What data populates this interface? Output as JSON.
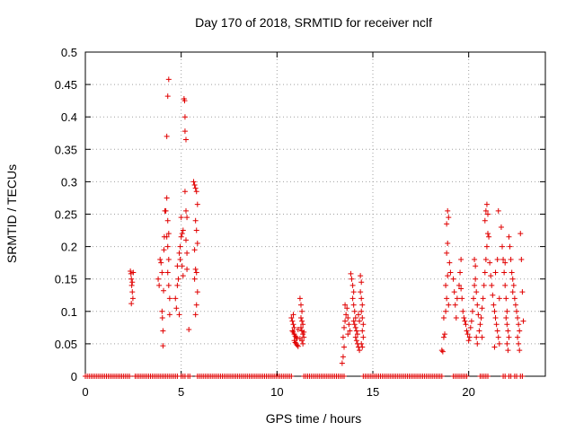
{
  "chart_data": {
    "type": "scatter",
    "title": "Day 170 of 2018, SRMTID for receiver nclf",
    "xlabel": "GPS time / hours",
    "ylabel": "SRMTID / TECUs",
    "xlim": [
      0,
      24
    ],
    "ylim": [
      0,
      0.5
    ],
    "xticks": [
      0,
      5,
      10,
      15,
      20
    ],
    "xtick_labels": [
      "0",
      "5",
      "10",
      "15",
      "20"
    ],
    "yticks": [
      0,
      0.05,
      0.1,
      0.15,
      0.2,
      0.25,
      0.3,
      0.35,
      0.4,
      0.45,
      0.5
    ],
    "ytick_labels": [
      "0",
      "0.05",
      "0.1",
      "0.15",
      "0.2",
      "0.25",
      "0.3",
      "0.35",
      "0.4",
      "0.45",
      "0.5"
    ],
    "grid": true,
    "legend": "none",
    "marker": "plus",
    "color": "#e00000",
    "series": [
      {
        "name": "SRMTID",
        "points": [
          [
            2.35,
            0.162
          ],
          [
            2.38,
            0.158
          ],
          [
            2.4,
            0.15
          ],
          [
            2.42,
            0.14
          ],
          [
            2.45,
            0.13
          ],
          [
            2.48,
            0.12
          ],
          [
            2.4,
            0.112
          ],
          [
            2.45,
            0.145
          ],
          [
            2.5,
            0.16
          ],
          [
            3.8,
            0.15
          ],
          [
            3.85,
            0.14
          ],
          [
            3.9,
            0.18
          ],
          [
            3.95,
            0.175
          ],
          [
            4.0,
            0.16
          ],
          [
            4.0,
            0.1
          ],
          [
            4.02,
            0.09
          ],
          [
            4.05,
            0.07
          ],
          [
            4.05,
            0.047
          ],
          [
            4.08,
            0.132
          ],
          [
            4.1,
            0.195
          ],
          [
            4.12,
            0.215
          ],
          [
            4.15,
            0.255
          ],
          [
            4.25,
            0.275
          ],
          [
            4.3,
            0.24
          ],
          [
            4.35,
            0.22
          ],
          [
            4.3,
            0.2
          ],
          [
            4.35,
            0.18
          ],
          [
            4.3,
            0.16
          ],
          [
            4.35,
            0.14
          ],
          [
            4.4,
            0.12
          ],
          [
            4.4,
            0.095
          ],
          [
            4.25,
            0.37
          ],
          [
            4.3,
            0.432
          ],
          [
            4.35,
            0.458
          ],
          [
            4.2,
            0.255
          ],
          [
            4.25,
            0.215
          ],
          [
            4.7,
            0.12
          ],
          [
            4.75,
            0.105
          ],
          [
            4.8,
            0.14
          ],
          [
            4.85,
            0.15
          ],
          [
            4.8,
            0.17
          ],
          [
            4.9,
            0.19
          ],
          [
            4.95,
            0.2
          ],
          [
            5.0,
            0.215
          ],
          [
            5.05,
            0.22
          ],
          [
            5.1,
            0.225
          ],
          [
            5.0,
            0.245
          ],
          [
            4.95,
            0.18
          ],
          [
            5.05,
            0.17
          ],
          [
            5.1,
            0.155
          ],
          [
            4.9,
            0.095
          ],
          [
            5.15,
            0.428
          ],
          [
            5.18,
            0.425
          ],
          [
            5.2,
            0.4
          ],
          [
            5.2,
            0.378
          ],
          [
            5.25,
            0.365
          ],
          [
            5.2,
            0.285
          ],
          [
            5.25,
            0.255
          ],
          [
            5.3,
            0.245
          ],
          [
            5.25,
            0.21
          ],
          [
            5.3,
            0.19
          ],
          [
            5.3,
            0.165
          ],
          [
            5.4,
            0.072
          ],
          [
            5.65,
            0.3
          ],
          [
            5.7,
            0.295
          ],
          [
            5.75,
            0.29
          ],
          [
            5.8,
            0.285
          ],
          [
            5.85,
            0.265
          ],
          [
            5.75,
            0.24
          ],
          [
            5.8,
            0.225
          ],
          [
            5.7,
            0.195
          ],
          [
            5.75,
            0.165
          ],
          [
            5.8,
            0.16
          ],
          [
            5.85,
            0.13
          ],
          [
            5.8,
            0.11
          ],
          [
            5.75,
            0.095
          ],
          [
            5.85,
            0.205
          ],
          [
            5.7,
            0.15
          ],
          [
            10.75,
            0.09
          ],
          [
            10.8,
            0.085
          ],
          [
            10.85,
            0.08
          ],
          [
            10.9,
            0.075
          ],
          [
            10.8,
            0.07
          ],
          [
            10.85,
            0.068
          ],
          [
            10.9,
            0.065
          ],
          [
            10.95,
            0.062
          ],
          [
            11.0,
            0.06
          ],
          [
            11.05,
            0.058
          ],
          [
            10.9,
            0.055
          ],
          [
            10.95,
            0.052
          ],
          [
            11.0,
            0.05
          ],
          [
            11.05,
            0.048
          ],
          [
            11.1,
            0.046
          ],
          [
            10.85,
            0.095
          ],
          [
            11.1,
            0.072
          ],
          [
            11.2,
            0.12
          ],
          [
            11.25,
            0.11
          ],
          [
            11.3,
            0.1
          ],
          [
            11.25,
            0.09
          ],
          [
            11.3,
            0.085
          ],
          [
            11.35,
            0.08
          ],
          [
            11.25,
            0.075
          ],
          [
            11.3,
            0.07
          ],
          [
            11.35,
            0.065
          ],
          [
            11.4,
            0.06
          ],
          [
            11.3,
            0.055
          ],
          [
            11.35,
            0.05
          ],
          [
            11.4,
            0.068
          ],
          [
            11.2,
            0.058
          ],
          [
            13.4,
            0.02
          ],
          [
            13.45,
            0.03
          ],
          [
            13.5,
            0.045
          ],
          [
            13.45,
            0.06
          ],
          [
            13.5,
            0.075
          ],
          [
            13.55,
            0.085
          ],
          [
            13.6,
            0.095
          ],
          [
            13.55,
            0.11
          ],
          [
            13.65,
            0.105
          ],
          [
            13.7,
            0.09
          ],
          [
            13.75,
            0.08
          ],
          [
            13.8,
            0.07
          ],
          [
            13.7,
            0.065
          ],
          [
            13.85,
            0.158
          ],
          [
            13.9,
            0.15
          ],
          [
            13.95,
            0.14
          ],
          [
            14.0,
            0.13
          ],
          [
            13.95,
            0.12
          ],
          [
            14.0,
            0.11
          ],
          [
            14.05,
            0.1
          ],
          [
            14.1,
            0.09
          ],
          [
            14.0,
            0.085
          ],
          [
            14.05,
            0.08
          ],
          [
            14.1,
            0.075
          ],
          [
            14.15,
            0.07
          ],
          [
            14.2,
            0.065
          ],
          [
            14.1,
            0.06
          ],
          [
            14.15,
            0.055
          ],
          [
            14.2,
            0.05
          ],
          [
            14.25,
            0.045
          ],
          [
            14.3,
            0.04
          ],
          [
            14.35,
            0.155
          ],
          [
            14.4,
            0.145
          ],
          [
            14.35,
            0.13
          ],
          [
            14.4,
            0.12
          ],
          [
            14.45,
            0.11
          ],
          [
            14.4,
            0.1
          ],
          [
            14.45,
            0.09
          ],
          [
            14.5,
            0.08
          ],
          [
            14.45,
            0.07
          ],
          [
            14.5,
            0.06
          ],
          [
            14.4,
            0.05
          ],
          [
            14.45,
            0.045
          ],
          [
            14.3,
            0.085
          ],
          [
            14.25,
            0.095
          ],
          [
            18.6,
            0.04
          ],
          [
            18.65,
            0.038
          ],
          [
            18.7,
            0.06
          ],
          [
            18.75,
            0.065
          ],
          [
            18.7,
            0.09
          ],
          [
            18.8,
            0.1
          ],
          [
            18.85,
            0.12
          ],
          [
            18.8,
            0.14
          ],
          [
            18.9,
            0.155
          ],
          [
            18.85,
            0.19
          ],
          [
            18.9,
            0.205
          ],
          [
            18.85,
            0.235
          ],
          [
            18.9,
            0.255
          ],
          [
            18.95,
            0.245
          ],
          [
            19.0,
            0.175
          ],
          [
            19.05,
            0.16
          ],
          [
            18.95,
            0.11
          ],
          [
            19.2,
            0.15
          ],
          [
            19.25,
            0.13
          ],
          [
            19.3,
            0.11
          ],
          [
            19.35,
            0.09
          ],
          [
            19.4,
            0.12
          ],
          [
            19.5,
            0.14
          ],
          [
            19.55,
            0.16
          ],
          [
            19.6,
            0.135
          ],
          [
            19.65,
            0.12
          ],
          [
            19.7,
            0.1
          ],
          [
            19.75,
            0.09
          ],
          [
            19.8,
            0.085
          ],
          [
            19.85,
            0.08
          ],
          [
            19.9,
            0.07
          ],
          [
            19.95,
            0.065
          ],
          [
            19.6,
            0.18
          ],
          [
            20.0,
            0.055
          ],
          [
            20.05,
            0.06
          ],
          [
            20.1,
            0.075
          ],
          [
            20.15,
            0.085
          ],
          [
            20.2,
            0.1
          ],
          [
            20.25,
            0.12
          ],
          [
            20.3,
            0.14
          ],
          [
            20.35,
            0.15
          ],
          [
            20.4,
            0.13
          ],
          [
            20.45,
            0.11
          ],
          [
            20.5,
            0.095
          ],
          [
            20.3,
            0.18
          ],
          [
            20.35,
            0.17
          ],
          [
            20.4,
            0.06
          ],
          [
            20.45,
            0.05
          ],
          [
            20.55,
            0.07
          ],
          [
            20.6,
            0.08
          ],
          [
            20.65,
            0.09
          ],
          [
            20.7,
            0.105
          ],
          [
            20.75,
            0.12
          ],
          [
            20.8,
            0.14
          ],
          [
            20.85,
            0.16
          ],
          [
            20.9,
            0.18
          ],
          [
            20.95,
            0.2
          ],
          [
            21.0,
            0.22
          ],
          [
            20.85,
            0.24
          ],
          [
            20.9,
            0.255
          ],
          [
            20.95,
            0.265
          ],
          [
            21.0,
            0.25
          ],
          [
            21.05,
            0.215
          ],
          [
            21.1,
            0.175
          ],
          [
            20.7,
            0.06
          ],
          [
            21.15,
            0.155
          ],
          [
            21.2,
            0.14
          ],
          [
            21.25,
            0.125
          ],
          [
            21.3,
            0.11
          ],
          [
            21.35,
            0.1
          ],
          [
            21.4,
            0.09
          ],
          [
            21.45,
            0.08
          ],
          [
            21.5,
            0.07
          ],
          [
            21.55,
            0.06
          ],
          [
            21.6,
            0.05
          ],
          [
            21.4,
            0.16
          ],
          [
            21.5,
            0.18
          ],
          [
            21.55,
            0.255
          ],
          [
            21.6,
            0.12
          ],
          [
            21.35,
            0.045
          ],
          [
            21.7,
            0.23
          ],
          [
            21.75,
            0.2
          ],
          [
            21.8,
            0.18
          ],
          [
            21.85,
            0.16
          ],
          [
            21.9,
            0.14
          ],
          [
            21.95,
            0.12
          ],
          [
            22.0,
            0.1
          ],
          [
            21.95,
            0.09
          ],
          [
            22.0,
            0.08
          ],
          [
            22.05,
            0.07
          ],
          [
            22.1,
            0.06
          ],
          [
            22.0,
            0.05
          ],
          [
            22.05,
            0.04
          ],
          [
            21.9,
            0.175
          ],
          [
            22.1,
            0.215
          ],
          [
            22.15,
            0.2
          ],
          [
            22.2,
            0.18
          ],
          [
            22.25,
            0.16
          ],
          [
            22.3,
            0.15
          ],
          [
            22.35,
            0.14
          ],
          [
            22.3,
            0.13
          ],
          [
            22.4,
            0.12
          ],
          [
            22.45,
            0.11
          ],
          [
            22.5,
            0.1
          ],
          [
            22.55,
            0.09
          ],
          [
            22.6,
            0.08
          ],
          [
            22.65,
            0.07
          ],
          [
            22.55,
            0.06
          ],
          [
            22.6,
            0.05
          ],
          [
            22.65,
            0.04
          ],
          [
            22.7,
            0.22
          ],
          [
            22.75,
            0.18
          ],
          [
            22.8,
            0.13
          ],
          [
            22.85,
            0.085
          ]
        ],
        "zero_runs": [
          [
            0.0,
            2.3
          ],
          [
            2.6,
            4.6
          ],
          [
            4.7,
            4.85
          ],
          [
            5.0,
            5.2
          ],
          [
            5.35,
            5.5
          ],
          [
            5.85,
            10.8
          ],
          [
            11.4,
            13.5
          ],
          [
            14.5,
            18.6
          ],
          [
            19.2,
            19.9
          ],
          [
            20.6,
            21.0
          ],
          [
            21.8,
            21.9
          ],
          [
            22.1,
            22.2
          ],
          [
            22.4,
            22.5
          ],
          [
            22.7,
            22.8
          ]
        ],
        "zero_spacing": 0.1
      }
    ]
  }
}
